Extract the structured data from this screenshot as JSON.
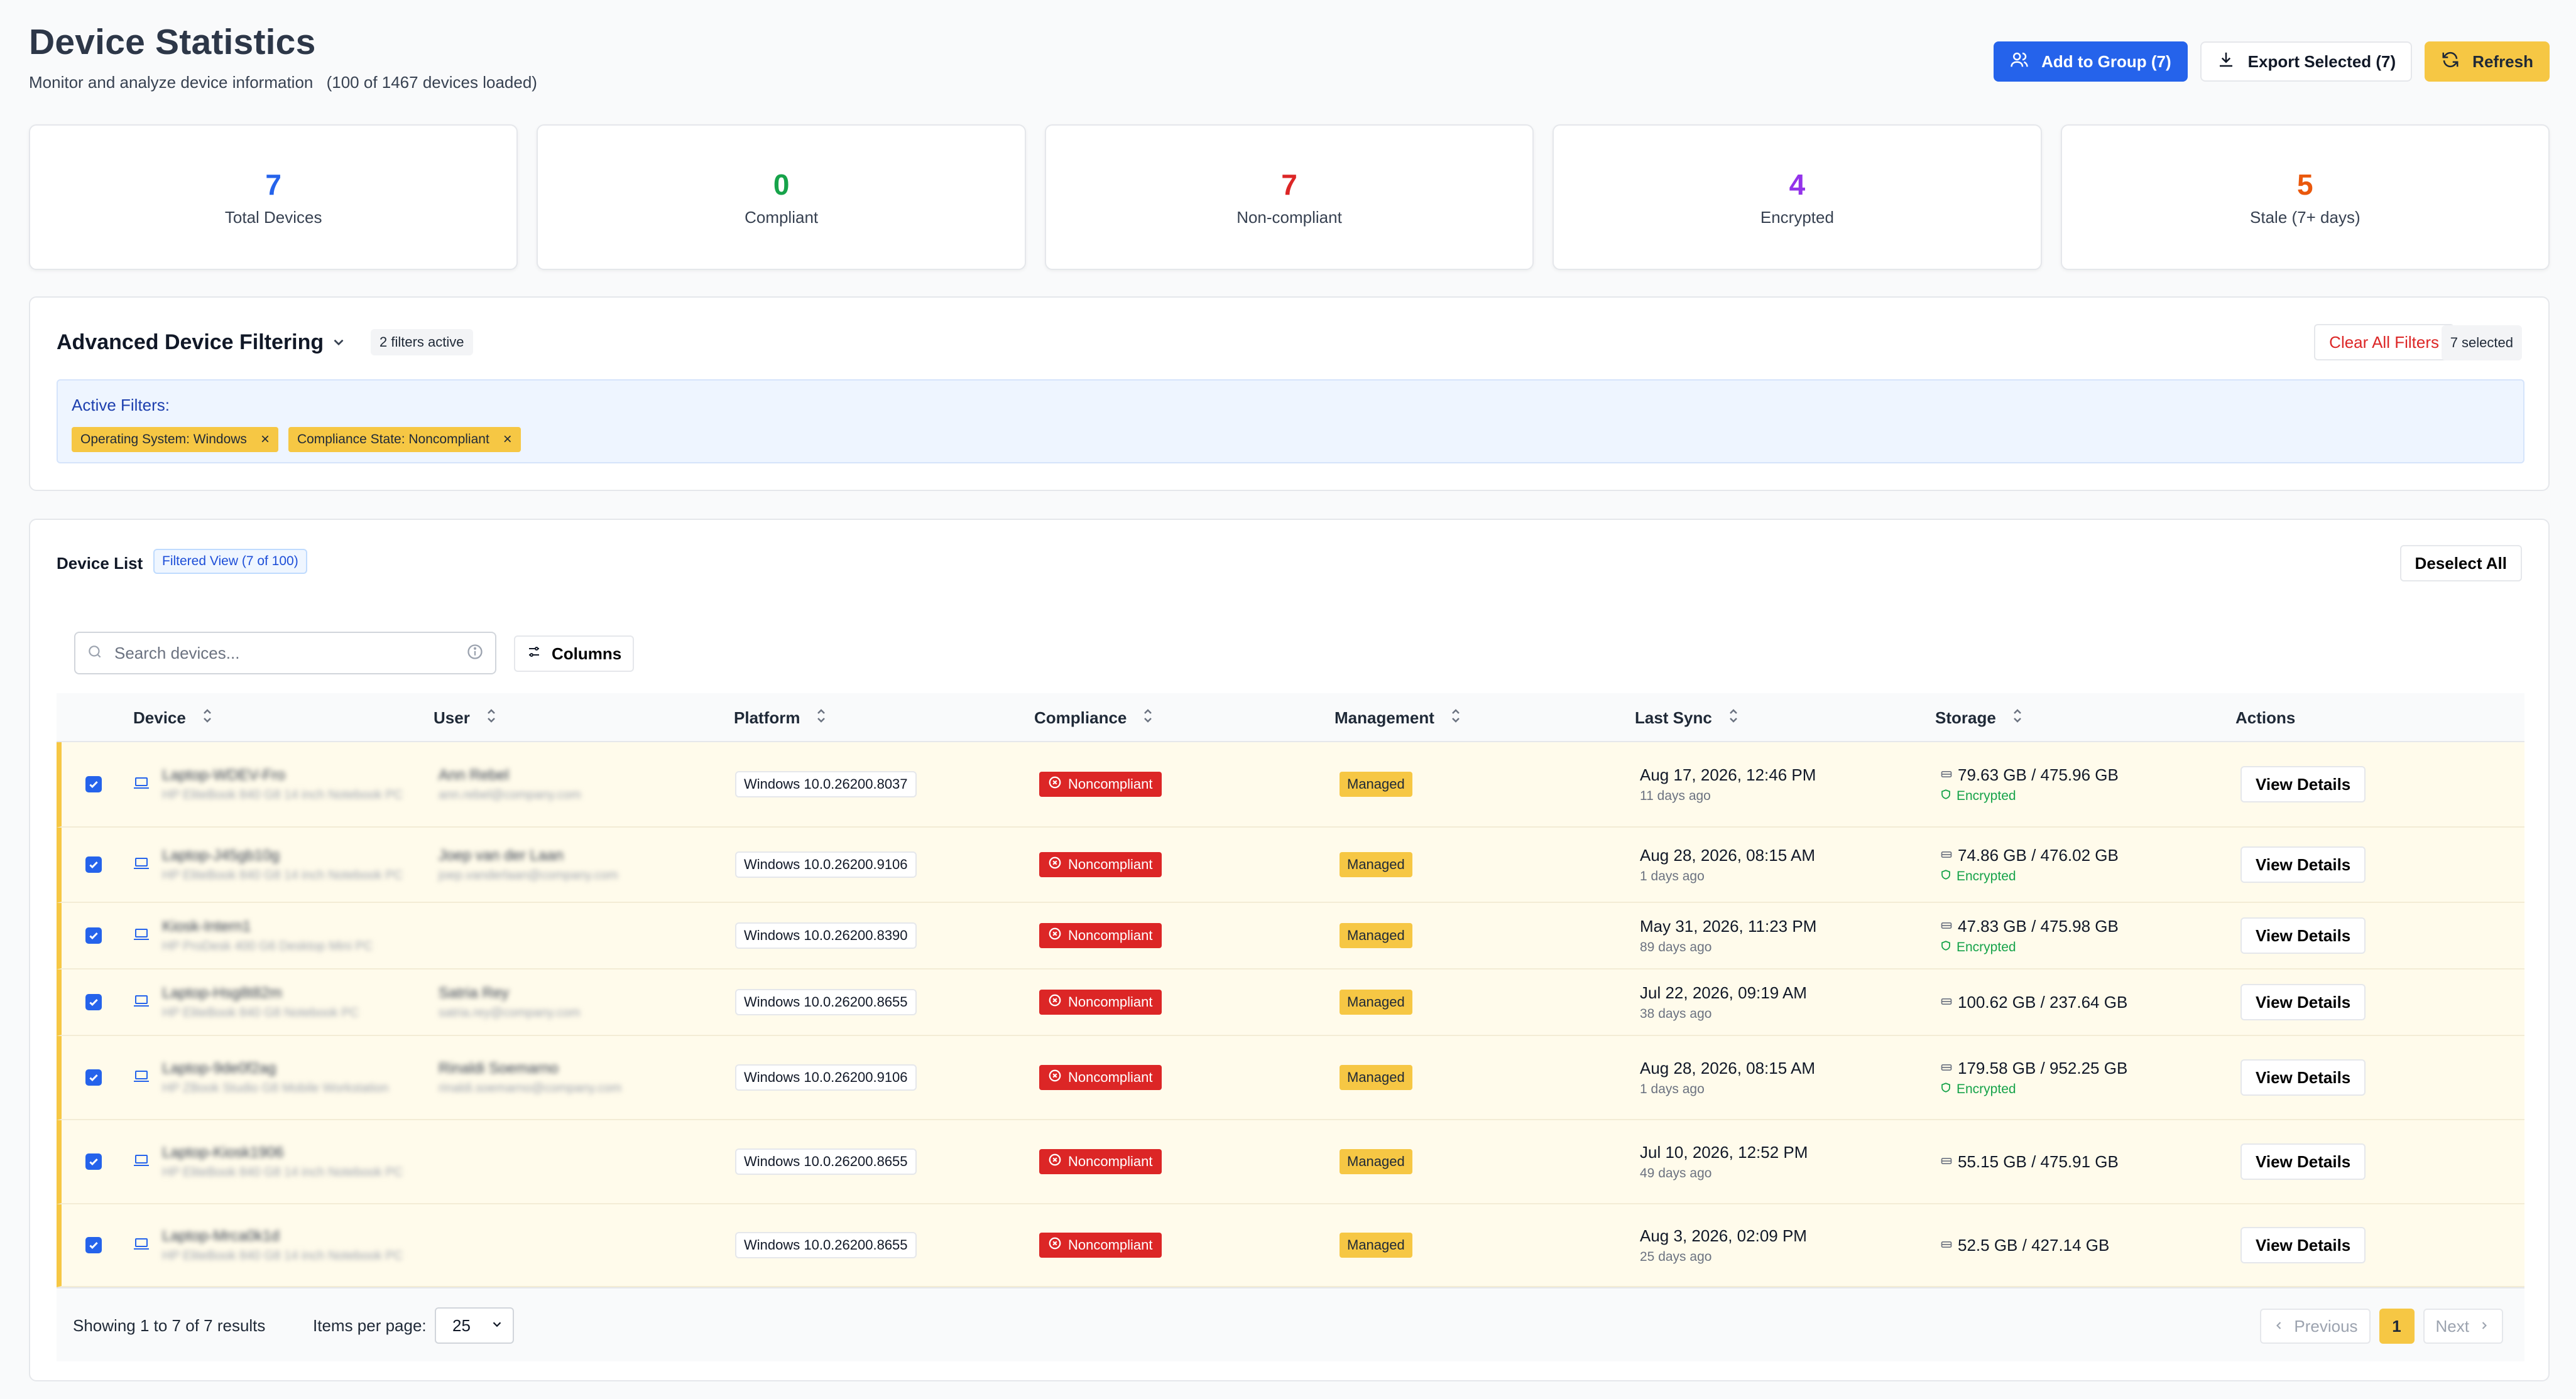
{
  "header": {
    "title": "Device Statistics",
    "subtitle": "Monitor and analyze device information",
    "loaded": "(100 of 1467 devices loaded)",
    "add_to_group": "Add to Group (7)",
    "export_selected": "Export Selected (7)",
    "refresh": "Refresh"
  },
  "stats": [
    {
      "value": "7",
      "label": "Total Devices",
      "color": "#2563eb"
    },
    {
      "value": "0",
      "label": "Compliant",
      "color": "#16a34a"
    },
    {
      "value": "7",
      "label": "Non-compliant",
      "color": "#dc2626"
    },
    {
      "value": "4",
      "label": "Encrypted",
      "color": "#9333ea"
    },
    {
      "value": "5",
      "label": "Stale (7+ days)",
      "color": "#ea580c"
    }
  ],
  "filters": {
    "title": "Advanced Device Filtering",
    "active_count": "2 filters active",
    "clear_all": "Clear All Filters",
    "selected": "7 selected",
    "active_label": "Active Filters:",
    "chips": [
      "Operating System: Windows",
      "Compliance State: Noncompliant"
    ]
  },
  "device_list": {
    "title": "Device List",
    "filtered_view": "Filtered View (7 of 100)",
    "deselect_all": "Deselect All",
    "search_placeholder": "Search devices...",
    "columns_button": "Columns",
    "headers": {
      "device": "Device",
      "user": "User",
      "platform": "Platform",
      "compliance": "Compliance",
      "management": "Management",
      "last_sync": "Last Sync",
      "storage": "Storage",
      "actions": "Actions"
    },
    "rows": [
      {
        "device_name": "Laptop-WDEV-Fro",
        "device_sub": "HP EliteBook 840 G8 14 inch Notebook PC",
        "user_name": "Ann Rebel",
        "user_email": "ann.rebel@company.com",
        "platform": "Windows 10.0.26200.8037",
        "compliance": "Noncompliant",
        "management": "Managed",
        "sync_date": "Aug 17, 2026, 12:46 PM",
        "sync_ago": "11 days ago",
        "storage": "79.63 GB / 475.96 GB",
        "encrypted": "Encrypted",
        "view": "View Details"
      },
      {
        "device_name": "Laptop-J45gb10g",
        "device_sub": "HP EliteBook 840 G8 14 inch Notebook PC",
        "user_name": "Joep van der Laan",
        "user_email": "joep.vanderlaan@company.com",
        "platform": "Windows 10.0.26200.9106",
        "compliance": "Noncompliant",
        "management": "Managed",
        "sync_date": "Aug 28, 2026, 08:15 AM",
        "sync_ago": "1 days ago",
        "storage": "74.86 GB / 476.02 GB",
        "encrypted": "Encrypted",
        "view": "View Details"
      },
      {
        "device_name": "Kiosk-Intern1",
        "device_sub": "HP ProDesk 400 G6 Desktop Mini PC",
        "user_name": "",
        "user_email": "",
        "platform": "Windows 10.0.26200.8390",
        "compliance": "Noncompliant",
        "management": "Managed",
        "sync_date": "May 31, 2026, 11:23 PM",
        "sync_ago": "89 days ago",
        "storage": "47.83 GB / 475.98 GB",
        "encrypted": "Encrypted",
        "view": "View Details"
      },
      {
        "device_name": "Laptop-Hsg8t82m",
        "device_sub": "HP EliteBook 840 G8 Notebook PC",
        "user_name": "Satria Rey",
        "user_email": "satria.rey@company.com",
        "platform": "Windows 10.0.26200.8655",
        "compliance": "Noncompliant",
        "management": "Managed",
        "sync_date": "Jul 22, 2026, 09:19 AM",
        "sync_ago": "38 days ago",
        "storage": "100.62 GB / 237.64 GB",
        "encrypted": "",
        "view": "View Details"
      },
      {
        "device_name": "Laptop-9de0f2ag",
        "device_sub": "HP ZBook Studio G8 Mobile Workstation",
        "user_name": "Rinaldi Soemarno",
        "user_email": "rinaldi.soemarno@company.com",
        "platform": "Windows 10.0.26200.9106",
        "compliance": "Noncompliant",
        "management": "Managed",
        "sync_date": "Aug 28, 2026, 08:15 AM",
        "sync_ago": "1 days ago",
        "storage": "179.58 GB / 952.25 GB",
        "encrypted": "Encrypted",
        "view": "View Details"
      },
      {
        "device_name": "Laptop-Kiosk1906",
        "device_sub": "HP EliteBook 840 G8 14 inch Notebook PC",
        "user_name": "",
        "user_email": "",
        "platform": "Windows 10.0.26200.8655",
        "compliance": "Noncompliant",
        "management": "Managed",
        "sync_date": "Jul 10, 2026, 12:52 PM",
        "sync_ago": "49 days ago",
        "storage": "55.15 GB / 475.91 GB",
        "encrypted": "",
        "view": "View Details"
      },
      {
        "device_name": "Laptop-Mrca0k1d",
        "device_sub": "HP EliteBook 840 G8 14 inch Notebook PC",
        "user_name": "",
        "user_email": "",
        "platform": "Windows 10.0.26200.8655",
        "compliance": "Noncompliant",
        "management": "Managed",
        "sync_date": "Aug 3, 2026, 02:09 PM",
        "sync_ago": "25 days ago",
        "storage": "52.5 GB / 427.14 GB",
        "encrypted": "",
        "view": "View Details"
      }
    ],
    "footer": {
      "showing": "Showing 1 to 7 of 7 results",
      "items_per_page": "Items per page:",
      "per_page_value": "25",
      "previous": "Previous",
      "page": "1",
      "next": "Next"
    }
  }
}
